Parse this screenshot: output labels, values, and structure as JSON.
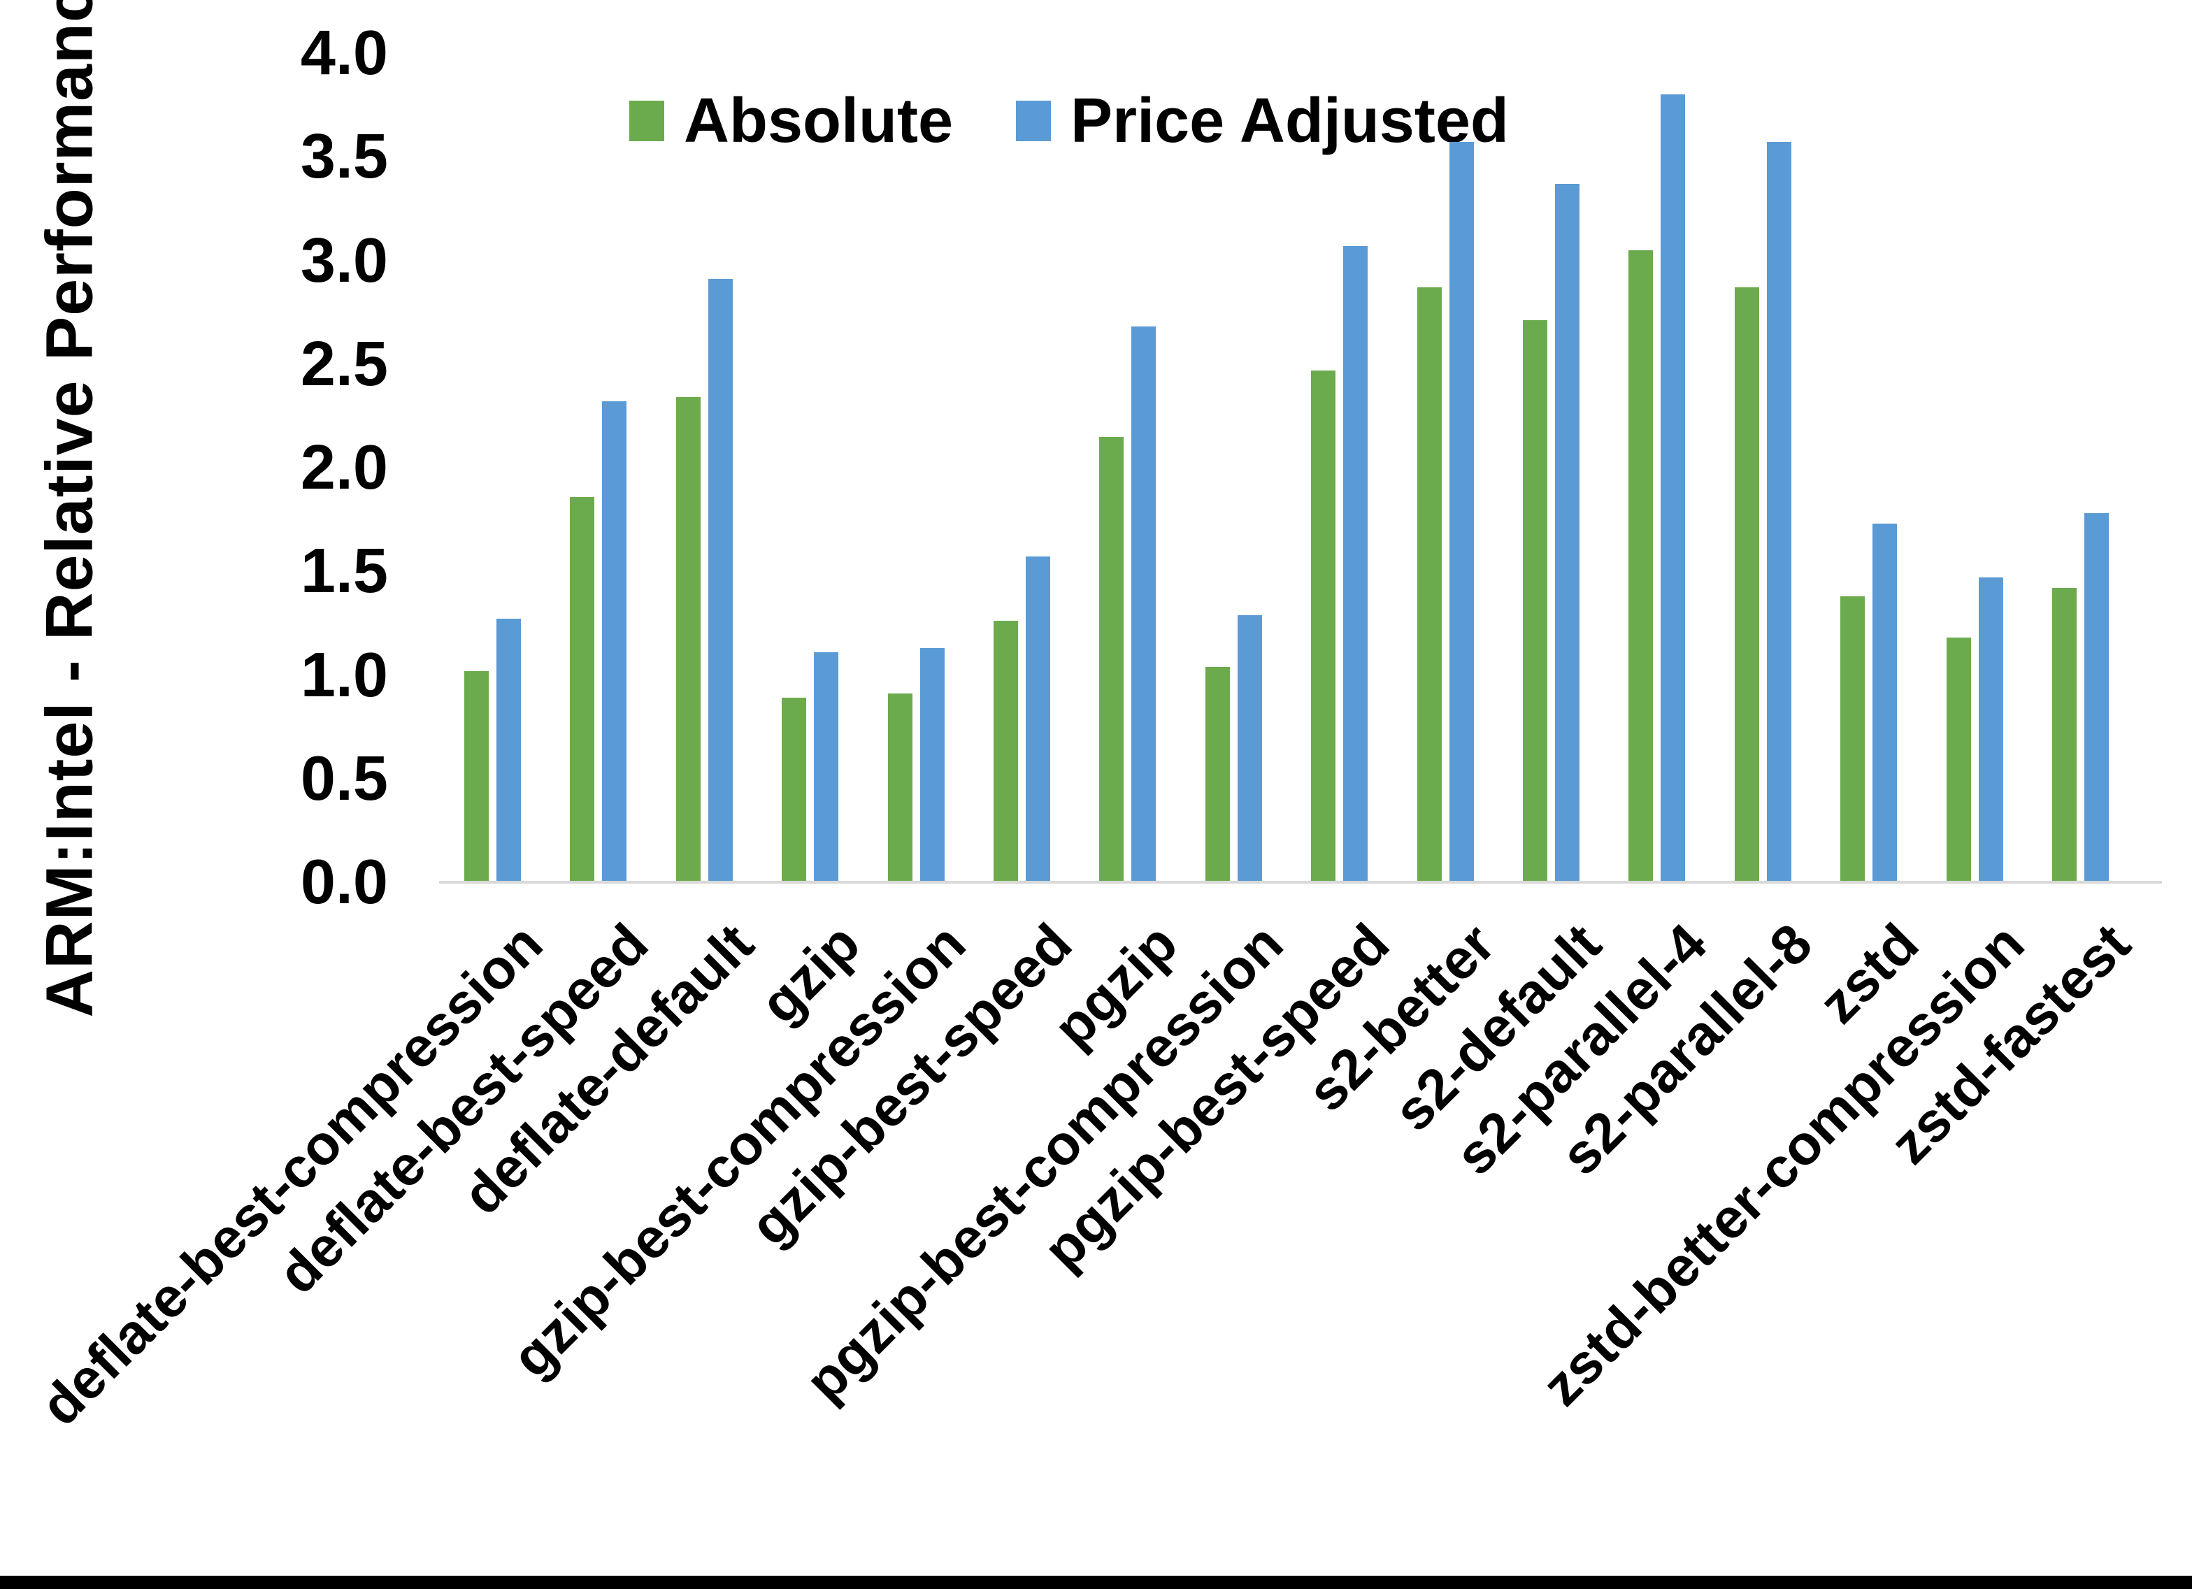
{
  "chart_data": {
    "type": "bar",
    "title": "",
    "ylabel": "ARM:Intel - Relative Performance",
    "xlabel": "",
    "ylim": [
      0.0,
      4.0
    ],
    "ytick_step": 0.5,
    "grid": false,
    "legend_position": "top-center",
    "categories": [
      "deflate-best-compression",
      "deflate-best-speed",
      "deflate-default",
      "gzip",
      "gzip-best-compression",
      "gzip-best-speed",
      "pgzip",
      "pgzip-best-compression",
      "pgzip-best-speed",
      "s2-better",
      "s2-default",
      "s2-parallel-4",
      "s2-parallel-8",
      "zstd",
      "zstd-better-compression",
      "zstd-fastest"
    ],
    "series": [
      {
        "name": "Absolute",
        "color": "#6CAB4D",
        "values": [
          1.02,
          1.86,
          2.34,
          0.89,
          0.91,
          1.26,
          2.15,
          1.04,
          2.47,
          2.87,
          2.71,
          3.05,
          2.87,
          1.38,
          1.18,
          1.42
        ]
      },
      {
        "name": "Price Adjusted",
        "color": "#5B9BD5",
        "values": [
          1.27,
          2.32,
          2.91,
          1.11,
          1.13,
          1.57,
          2.68,
          1.29,
          3.07,
          3.57,
          3.37,
          3.8,
          3.57,
          1.73,
          1.47,
          1.78
        ]
      }
    ]
  },
  "y_axis": {
    "tick_labels": [
      "4.0",
      "3.5",
      "3.0",
      "2.5",
      "2.0",
      "1.5",
      "1.0",
      "0.5",
      "0.0"
    ]
  },
  "colors": {
    "axis_line": "#d9d9d9",
    "text": "#000000",
    "bottom_border": "#000000"
  }
}
